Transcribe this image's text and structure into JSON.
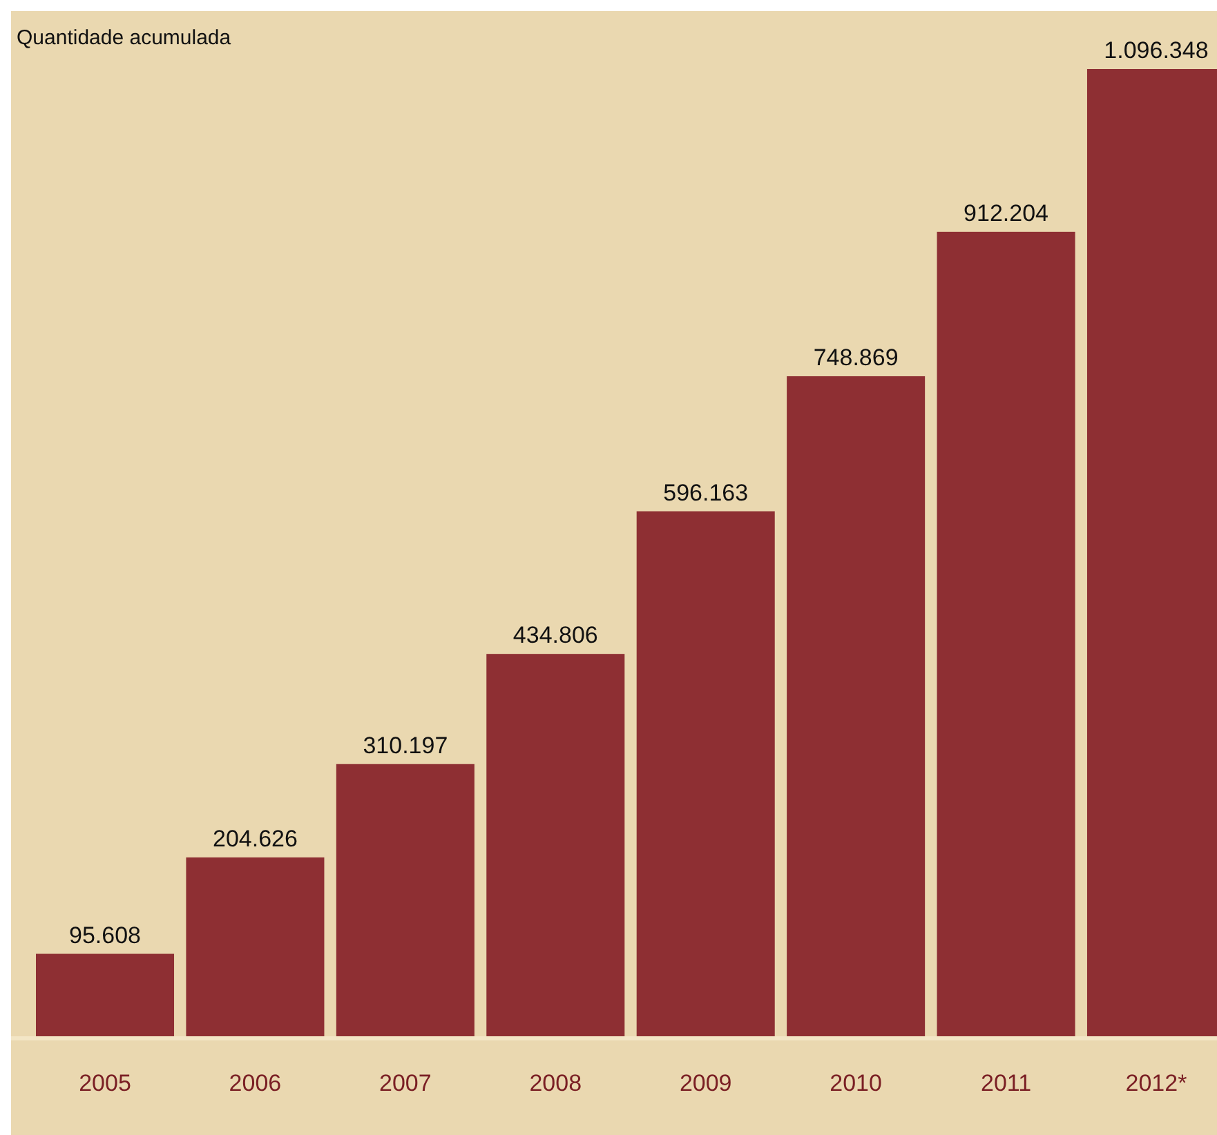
{
  "chart_data": {
    "type": "bar",
    "title": "Quantidade acumulada",
    "categories": [
      "2005",
      "2006",
      "2007",
      "2008",
      "2009",
      "2010",
      "2011",
      "2012*"
    ],
    "values": [
      95608,
      204626,
      310197,
      434806,
      596163,
      748869,
      912204,
      1096348
    ],
    "value_labels": [
      "95.608",
      "204.626",
      "310.197",
      "434.806",
      "596.163",
      "748.869",
      "912.204",
      "1.096.348"
    ],
    "color": "#8e2f33"
  }
}
